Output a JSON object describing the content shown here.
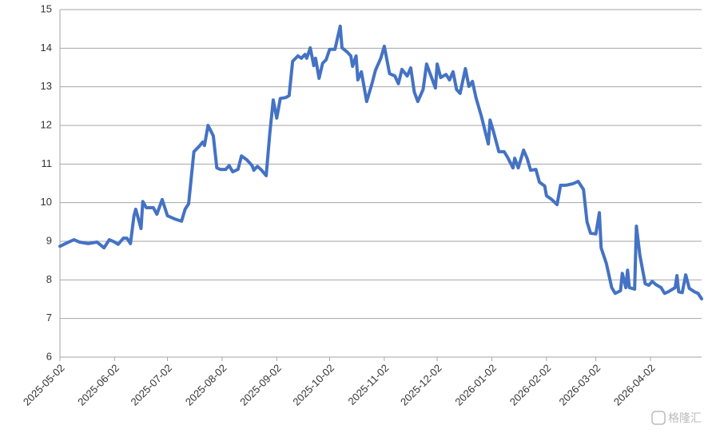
{
  "chart_data": {
    "type": "line",
    "x": [
      "2025-05-02",
      "2025-05-07",
      "2025-05-10",
      "2025-05-13",
      "2025-05-18",
      "2025-05-23",
      "2025-05-27",
      "2025-05-30",
      "2025-06-02",
      "2025-06-04",
      "2025-06-07",
      "2025-06-09",
      "2025-06-11",
      "2025-06-13",
      "2025-06-14",
      "2025-06-17",
      "2025-06-18",
      "2025-06-20",
      "2025-06-24",
      "2025-06-26",
      "2025-06-29",
      "2025-07-02",
      "2025-07-06",
      "2025-07-10",
      "2025-07-12",
      "2025-07-14",
      "2025-07-17",
      "2025-07-20",
      "2025-07-22",
      "2025-07-23",
      "2025-07-25",
      "2025-07-28",
      "2025-07-30",
      "2025-08-01",
      "2025-08-04",
      "2025-08-06",
      "2025-08-08",
      "2025-08-11",
      "2025-08-13",
      "2025-08-16",
      "2025-08-19",
      "2025-08-20",
      "2025-08-22",
      "2025-08-24",
      "2025-08-27",
      "2025-08-29",
      "2025-08-31",
      "2025-09-02",
      "2025-09-04",
      "2025-09-07",
      "2025-09-09",
      "2025-09-11",
      "2025-09-14",
      "2025-09-16",
      "2025-09-18",
      "2025-09-19",
      "2025-09-21",
      "2025-09-23",
      "2025-09-24",
      "2025-09-26",
      "2025-09-28",
      "2025-09-30",
      "2025-10-02",
      "2025-10-05",
      "2025-10-08",
      "2025-10-09",
      "2025-10-12",
      "2025-10-14",
      "2025-10-15",
      "2025-10-17",
      "2025-10-18",
      "2025-10-20",
      "2025-10-23",
      "2025-10-26",
      "2025-10-28",
      "2025-10-31",
      "2025-11-02",
      "2025-11-05",
      "2025-11-08",
      "2025-11-10",
      "2025-11-12",
      "2025-11-15",
      "2025-11-17",
      "2025-11-19",
      "2025-11-21",
      "2025-11-24",
      "2025-11-26",
      "2025-11-28",
      "2025-12-01",
      "2025-12-02",
      "2025-12-04",
      "2025-12-07",
      "2025-12-09",
      "2025-12-11",
      "2025-12-13",
      "2025-12-15",
      "2025-12-18",
      "2025-12-20",
      "2025-12-22",
      "2025-12-24",
      "2025-12-27",
      "2025-12-31",
      "2026-01-01",
      "2026-01-03",
      "2026-01-06",
      "2026-01-09",
      "2026-01-11",
      "2026-01-14",
      "2026-01-15",
      "2026-01-17",
      "2026-01-20",
      "2026-01-22",
      "2026-01-24",
      "2026-01-27",
      "2026-01-29",
      "2026-02-01",
      "2026-02-02",
      "2026-02-05",
      "2026-02-08",
      "2026-02-10",
      "2026-02-13",
      "2026-02-17",
      "2026-02-20",
      "2026-02-23",
      "2026-02-25",
      "2026-02-27",
      "2026-03-02",
      "2026-03-04",
      "2026-03-05",
      "2026-03-08",
      "2026-03-11",
      "2026-03-13",
      "2026-03-16",
      "2026-03-17",
      "2026-03-19",
      "2026-03-20",
      "2026-03-21",
      "2026-03-24",
      "2026-03-25",
      "2026-03-27",
      "2026-03-30",
      "2026-04-01",
      "2026-04-03",
      "2026-04-05",
      "2026-04-08",
      "2026-04-10",
      "2026-04-12",
      "2026-04-16",
      "2026-04-17",
      "2026-04-18",
      "2026-04-20",
      "2026-04-22",
      "2026-04-24",
      "2026-04-27",
      "2026-04-29",
      "2026-05-01"
    ],
    "series": [
      {
        "color": "#4472c4",
        "values": [
          8.87,
          8.98,
          9.04,
          8.98,
          8.94,
          8.98,
          8.83,
          9.04,
          8.98,
          8.92,
          9.08,
          9.08,
          8.94,
          9.66,
          9.83,
          9.33,
          10.03,
          9.87,
          9.87,
          9.7,
          10.08,
          9.66,
          9.58,
          9.52,
          9.83,
          9.97,
          11.32,
          11.46,
          11.57,
          11.48,
          12.0,
          11.73,
          10.9,
          10.86,
          10.86,
          10.96,
          10.8,
          10.86,
          11.21,
          11.11,
          10.96,
          10.84,
          10.94,
          10.86,
          10.7,
          11.77,
          12.66,
          12.19,
          12.7,
          12.72,
          12.77,
          13.66,
          13.8,
          13.74,
          13.84,
          13.74,
          14.01,
          13.55,
          13.74,
          13.22,
          13.61,
          13.7,
          13.97,
          13.97,
          14.57,
          14.01,
          13.9,
          13.8,
          13.53,
          13.8,
          13.18,
          13.39,
          12.62,
          13.08,
          13.43,
          13.74,
          14.05,
          13.34,
          13.28,
          13.08,
          13.45,
          13.28,
          13.49,
          12.87,
          12.62,
          12.93,
          13.59,
          13.34,
          12.97,
          13.59,
          13.24,
          13.32,
          13.18,
          13.39,
          12.93,
          12.83,
          13.47,
          13.01,
          13.14,
          12.72,
          12.25,
          11.52,
          12.14,
          11.83,
          11.32,
          11.32,
          11.17,
          10.9,
          11.15,
          10.9,
          11.36,
          11.15,
          10.84,
          10.86,
          10.53,
          10.43,
          10.18,
          10.08,
          9.95,
          10.45,
          10.45,
          10.49,
          10.55,
          10.34,
          9.5,
          9.21,
          9.19,
          9.74,
          8.83,
          8.42,
          7.8,
          7.65,
          7.72,
          8.17,
          7.8,
          8.25,
          7.8,
          7.76,
          9.39,
          8.63,
          7.9,
          7.86,
          7.96,
          7.88,
          7.8,
          7.65,
          7.69,
          7.8,
          8.11,
          7.69,
          7.67,
          8.13,
          7.78,
          7.69,
          7.65,
          7.51
        ]
      }
    ],
    "xlim": [
      "2025-05-02",
      "2026-05-01"
    ],
    "xticks": [
      "2025-05-02",
      "2025-06-02",
      "2025-07-02",
      "2025-08-02",
      "2025-09-02",
      "2025-10-02",
      "2025-11-02",
      "2025-12-02",
      "2026-01-02",
      "2026-02-02",
      "2026-03-02",
      "2026-04-02"
    ],
    "ylim": [
      6,
      15
    ],
    "yticks": [
      6,
      7,
      8,
      9,
      10,
      11,
      12,
      13,
      14,
      15
    ],
    "grid": true
  },
  "watermark": "格隆汇"
}
